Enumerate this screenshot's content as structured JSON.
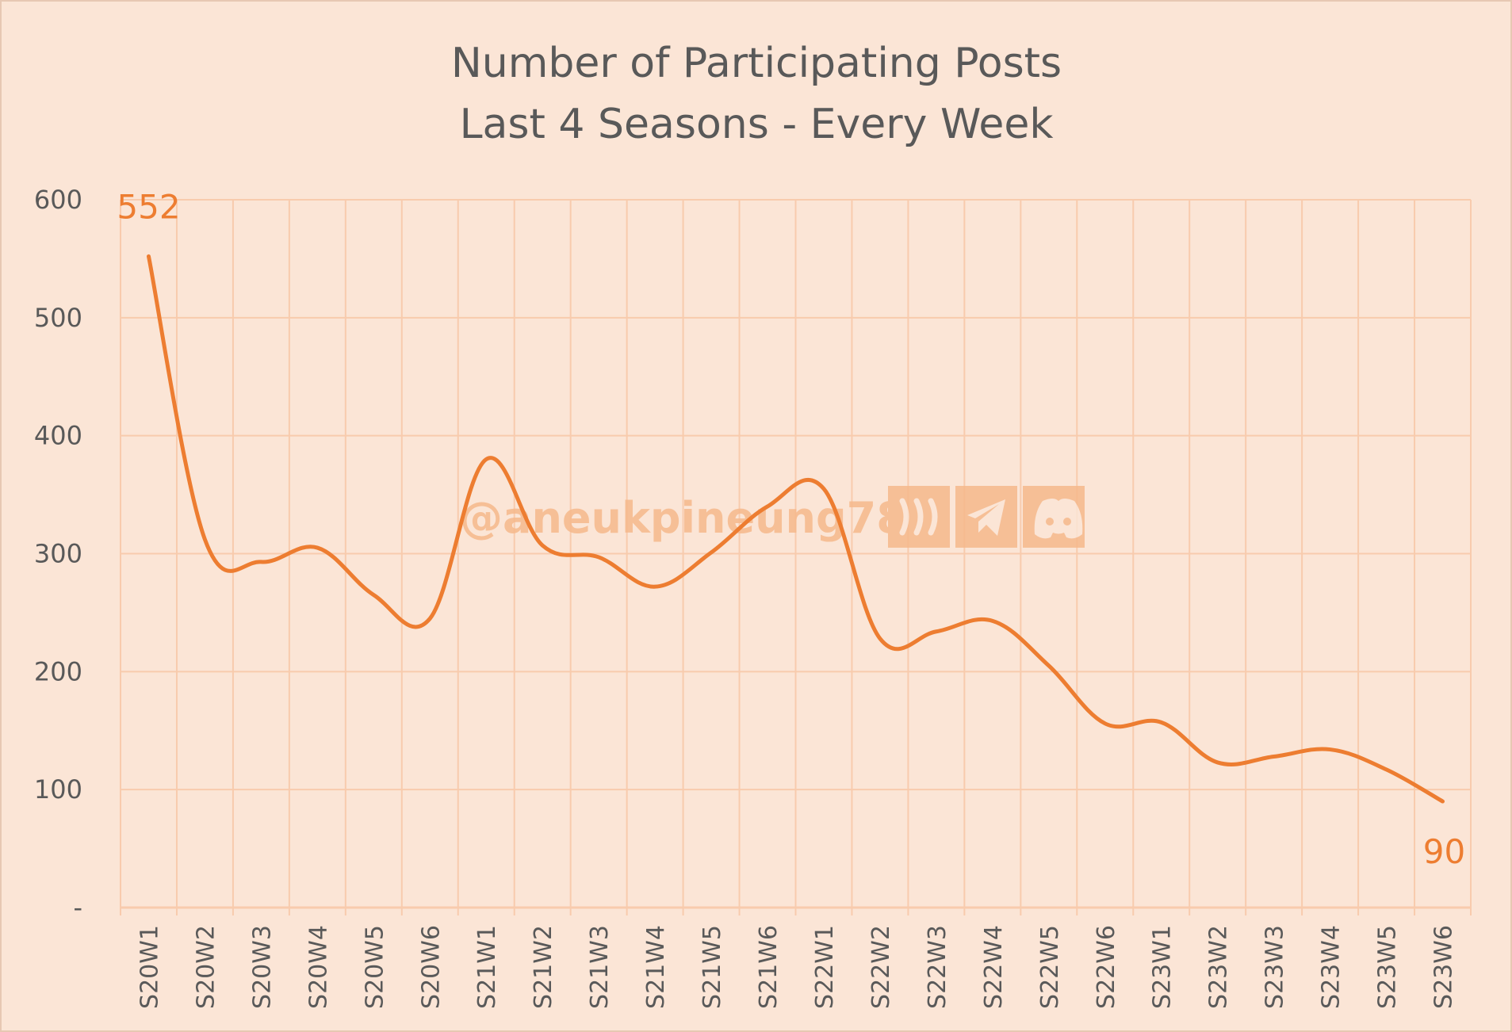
{
  "chart_data": {
    "type": "line",
    "title": [
      "Number of Participating Posts",
      "Last 4 Seasons - Every Week"
    ],
    "xlabel": "",
    "ylabel": "",
    "categories": [
      "S20W1",
      "S20W2",
      "S20W3",
      "S20W4",
      "S20W5",
      "S20W6",
      "S21W1",
      "S21W2",
      "S21W3",
      "S21W4",
      "S21W5",
      "S21W6",
      "S22W1",
      "S22W2",
      "S22W3",
      "S22W4",
      "S22W5",
      "S22W6",
      "S23W1",
      "S23W2",
      "S23W3",
      "S23W4",
      "S23W5",
      "S23W6"
    ],
    "series": [
      {
        "values": [
          552,
          312,
          293,
          305,
          265,
          245,
          380,
          307,
          297,
          272,
          301,
          340,
          355,
          228,
          234,
          243,
          205,
          156,
          157,
          123,
          128,
          134,
          117,
          90
        ]
      }
    ],
    "ylim": [
      0,
      600
    ],
    "yticks": [
      0,
      100,
      200,
      300,
      400,
      500,
      600
    ],
    "ytick_labels": [
      "-",
      "100",
      "200",
      "300",
      "400",
      "500",
      "600"
    ],
    "data_labels": [
      {
        "index": 0,
        "text": "552"
      },
      {
        "index": 23,
        "text": "90"
      }
    ],
    "grid": true,
    "legend": "none",
    "smooth": true,
    "colors": {
      "line": "#ed7d31",
      "grid": "#f8cbad",
      "background": "#fbe5d6",
      "text": "#595959"
    }
  },
  "watermark": {
    "handle": "@aneukpineung78",
    "icons": [
      "steem-icon",
      "telegram-icon",
      "discord-icon"
    ]
  }
}
